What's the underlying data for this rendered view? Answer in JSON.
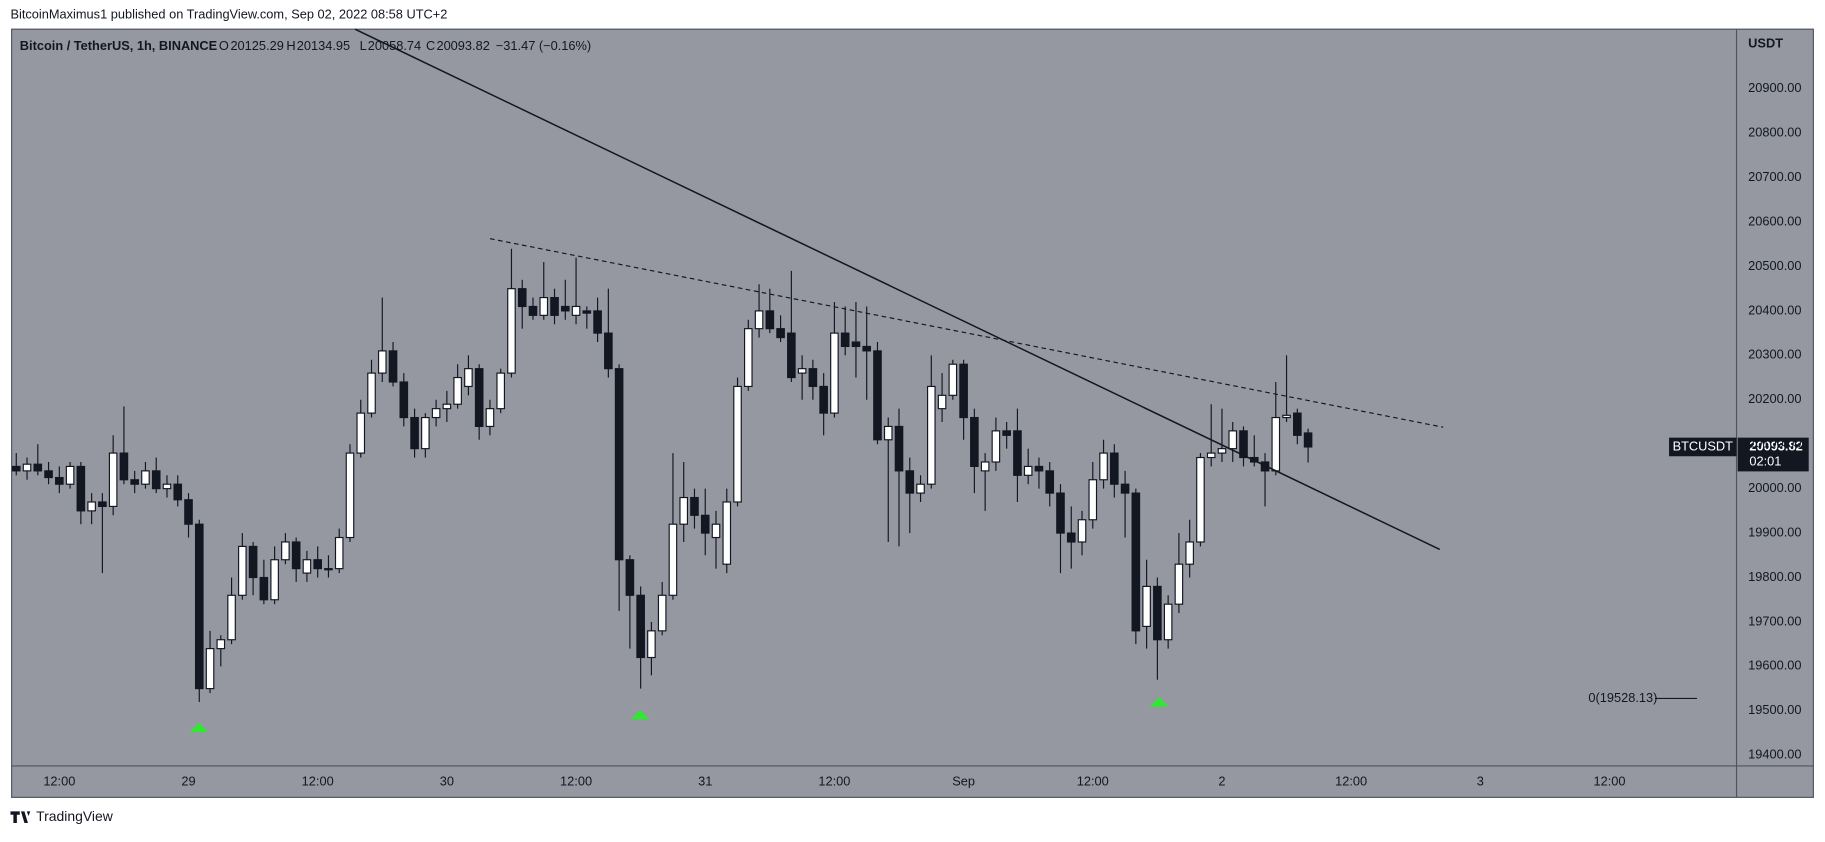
{
  "header": {
    "publisher": "BitcoinMaximus1 published on TradingView.com, Sep 02, 2022 08:58 UTC+2",
    "symbol": "Bitcoin / TetherUS, 1h, BINANCE",
    "ohlc_labels": [
      "O",
      "H",
      "L",
      "C"
    ],
    "change": "−31.47 (−0.16%)"
  },
  "footer": {
    "brand": "TradingView"
  },
  "price_tag": {
    "symbol": "BTCUSDT",
    "countdown": "02:01"
  },
  "fib_label": "0(19528.13)",
  "chart_data": {
    "type": "candlestick",
    "y_axis_label": "USDT",
    "open": [
      20050,
      20040,
      20055,
      20040,
      20025,
      20010,
      20050,
      19950,
      19970,
      19960,
      20080,
      20020,
      20010,
      20040,
      20000,
      20010,
      19975,
      19920,
      19550,
      19640,
      19660,
      19760,
      19870,
      19800,
      19750,
      19840,
      19880,
      19810,
      19840,
      19820,
      19820,
      19890,
      20080,
      20170,
      20260,
      20310,
      20240,
      20160,
      20090,
      20160,
      20180,
      20190,
      20230,
      20270,
      20140,
      20180,
      20260,
      20450,
      20410,
      20390,
      20430,
      20410,
      20390,
      20400,
      20400,
      20350,
      20270,
      19840,
      19760,
      19620,
      19680,
      19760,
      19920,
      19980,
      19940,
      19890,
      19830,
      19970,
      20230,
      20360,
      20400,
      20360,
      20350,
      20260,
      20270,
      20230,
      20170,
      20350,
      20330,
      20320,
      20310,
      20110,
      20140,
      20040,
      19990,
      20010,
      20180,
      20210,
      20280,
      20160,
      20040,
      20060,
      20130,
      20130,
      20030,
      20050,
      20040,
      19990,
      19900,
      19880,
      19930,
      20020,
      20080,
      20010,
      19990,
      19690,
      19780,
      19660,
      19740,
      19830,
      19880,
      20070,
      20080,
      20090,
      20130,
      20070,
      20060,
      20040,
      20160,
      20170,
      20125.29
    ],
    "high": [
      20080,
      20070,
      20100,
      20060,
      20050,
      20060,
      20060,
      19990,
      19990,
      20120,
      20185,
      20040,
      20060,
      20070,
      20030,
      20030,
      19990,
      19930,
      19680,
      19670,
      19800,
      19900,
      19880,
      19840,
      19870,
      19900,
      19890,
      19860,
      19870,
      19850,
      19910,
      20100,
      20200,
      20290,
      20430,
      20330,
      20260,
      20180,
      20170,
      20200,
      20220,
      20280,
      20300,
      20280,
      20200,
      20270,
      20540,
      20470,
      20430,
      20510,
      20450,
      20470,
      20520,
      20410,
      20430,
      20450,
      20280,
      19850,
      19780,
      19700,
      19790,
      20080,
      20060,
      20000,
      20000,
      19950,
      20000,
      20250,
      20380,
      20460,
      20450,
      20390,
      20490,
      20300,
      20290,
      20260,
      20420,
      20410,
      20420,
      20410,
      20330,
      20160,
      20180,
      20070,
      20030,
      20300,
      20260,
      20290,
      20290,
      20180,
      20080,
      20160,
      20150,
      20180,
      20090,
      20070,
      20060,
      20010,
      19960,
      19950,
      20060,
      20110,
      20100,
      20040,
      20000,
      19840,
      19800,
      19760,
      19900,
      19930,
      20080,
      20190,
      20180,
      20150,
      20140,
      20120,
      20080,
      20240,
      20300,
      20180,
      20134.95
    ],
    "low": [
      20030,
      20020,
      20030,
      20010,
      19990,
      20000,
      19920,
      19920,
      19810,
      19940,
      20010,
      19990,
      20000,
      19990,
      19980,
      19960,
      19890,
      19520,
      19540,
      19600,
      19650,
      19750,
      19760,
      19740,
      19740,
      19830,
      19790,
      19790,
      19800,
      19800,
      19810,
      19880,
      20070,
      20160,
      20240,
      20230,
      20140,
      20070,
      20070,
      20140,
      20150,
      20180,
      20210,
      20110,
      20120,
      20170,
      20250,
      20360,
      20380,
      20380,
      20370,
      20380,
      20370,
      20360,
      20330,
      20250,
      19725,
      19640,
      19550,
      19580,
      19670,
      19750,
      19880,
      19910,
      19850,
      19820,
      19810,
      19960,
      20220,
      20340,
      20350,
      20330,
      20240,
      20200,
      20200,
      20120,
      20160,
      20300,
      20250,
      20200,
      20100,
      19880,
      19870,
      19900,
      19970,
      20000,
      20150,
      20200,
      20110,
      19990,
      19950,
      20040,
      20090,
      19970,
      20010,
      20000,
      19960,
      19810,
      19820,
      19850,
      19910,
      20000,
      19980,
      19890,
      19650,
      19640,
      19570,
      19640,
      19720,
      19800,
      19870,
      20050,
      20060,
      20060,
      20050,
      20050,
      19960,
      20030,
      20150,
      20100,
      20058.74
    ],
    "close": [
      20040,
      20055,
      20040,
      20025,
      20010,
      20050,
      19950,
      19970,
      19960,
      20080,
      20020,
      20010,
      20040,
      20000,
      20010,
      19975,
      19920,
      19550,
      19640,
      19660,
      19760,
      19870,
      19800,
      19750,
      19840,
      19880,
      19820,
      19840,
      19820,
      19820,
      19890,
      20080,
      20170,
      20260,
      20310,
      20240,
      20160,
      20090,
      20160,
      20180,
      20190,
      20250,
      20270,
      20140,
      20180,
      20260,
      20450,
      20410,
      20390,
      20430,
      20390,
      20400,
      20410,
      20395,
      20350,
      20270,
      19840,
      19760,
      19620,
      19680,
      19760,
      19920,
      19980,
      19940,
      19900,
      19920,
      19970,
      20230,
      20360,
      20400,
      20360,
      20340,
      20250,
      20270,
      20230,
      20170,
      20350,
      20320,
      20320,
      20310,
      20110,
      20140,
      20040,
      19990,
      20010,
      20230,
      20210,
      20280,
      20160,
      20050,
      20060,
      20130,
      20120,
      20030,
      20050,
      20040,
      19990,
      19900,
      19880,
      19930,
      20020,
      20080,
      20010,
      19990,
      19680,
      19780,
      19660,
      19740,
      19830,
      19880,
      20070,
      20080,
      20090,
      20130,
      20070,
      20060,
      20040,
      20160,
      20165,
      20120,
      20093.82
    ],
    "up_color": "#ffffff",
    "down_color": "#131722",
    "background": "#9598a1",
    "ylim": [
      19376,
      21034
    ],
    "yticks": [
      {
        "value": 19400,
        "label": "19400.00"
      },
      {
        "value": 19500,
        "label": "19500.00"
      },
      {
        "value": 19600,
        "label": "19600.00"
      },
      {
        "value": 19700,
        "label": "19700.00"
      },
      {
        "value": 19800,
        "label": "19800.00"
      },
      {
        "value": 19900,
        "label": "19900.00"
      },
      {
        "value": 20000,
        "label": "20000.00"
      },
      {
        "value": 20100,
        "label": "20100.00"
      },
      {
        "value": 20200,
        "label": "20200.00"
      },
      {
        "value": 20300,
        "label": "20300.00"
      },
      {
        "value": 20400,
        "label": "20400.00"
      },
      {
        "value": 20500,
        "label": "20500.00"
      },
      {
        "value": 20600,
        "label": "20600.00"
      },
      {
        "value": 20700,
        "label": "20700.00"
      },
      {
        "value": 20800,
        "label": "20800.00"
      },
      {
        "value": 20900,
        "label": "20900.00"
      }
    ],
    "xlim": [
      -0.43,
      159.8
    ],
    "xticks": [
      {
        "value": 4,
        "label": "12:00"
      },
      {
        "value": 16,
        "label": "29"
      },
      {
        "value": 28,
        "label": "12:00"
      },
      {
        "value": 40,
        "label": "30"
      },
      {
        "value": 52,
        "label": "12:00"
      },
      {
        "value": 64,
        "label": "31"
      },
      {
        "value": 76,
        "label": "12:00"
      },
      {
        "value": 88,
        "label": "Sep"
      },
      {
        "value": 100,
        "label": "12:00"
      },
      {
        "value": 112,
        "label": "2"
      },
      {
        "value": 124,
        "label": "12:00"
      },
      {
        "value": 136,
        "label": "3"
      },
      {
        "value": 148,
        "label": "12:00"
      }
    ]
  }
}
